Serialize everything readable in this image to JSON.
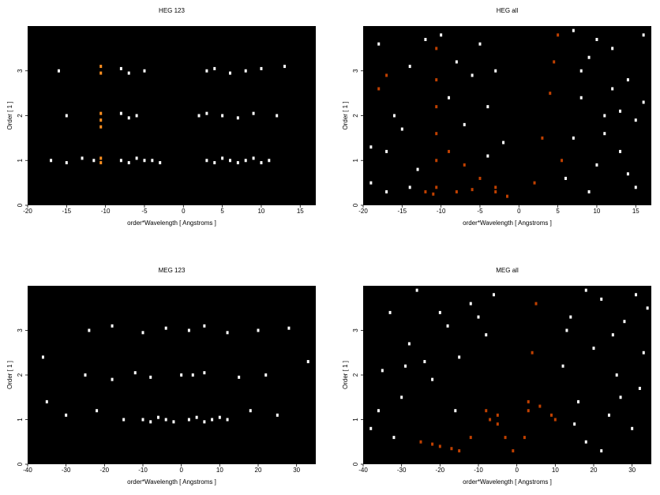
{
  "chart_data": [
    {
      "type": "scatter",
      "title": "HEG 123",
      "xlabel": "order*Wavelength [ Angstroms ]",
      "ylabel": "Order [ 1 ]",
      "xlim": [
        -20,
        17
      ],
      "ylim": [
        0,
        4
      ],
      "xticks": [
        -20,
        -15,
        -10,
        -5,
        0,
        5,
        10,
        15
      ],
      "yticks": [
        0,
        1,
        2,
        3
      ],
      "background": "#000000",
      "series": [
        {
          "color": "#ffffff",
          "x": [
            -17,
            -15,
            -13,
            -11.5,
            -8,
            -7,
            -6,
            -5,
            -4,
            -3,
            3,
            4,
            5,
            6,
            7,
            8,
            9,
            10,
            11,
            -15,
            -8,
            -7,
            -6,
            2,
            3,
            5,
            7,
            9,
            12,
            -16,
            -8,
            -7,
            -5,
            3,
            4,
            6,
            8,
            10,
            13
          ],
          "y": [
            1.0,
            0.95,
            1.05,
            1.0,
            1.0,
            0.95,
            1.05,
            1.0,
            1.0,
            0.95,
            1.0,
            0.95,
            1.05,
            1.0,
            0.95,
            1.0,
            1.05,
            0.95,
            1.0,
            2.0,
            2.05,
            1.95,
            2.0,
            2.0,
            2.05,
            2.0,
            1.95,
            2.05,
            2.0,
            3.0,
            3.05,
            2.95,
            3.0,
            3.0,
            3.05,
            2.95,
            3.0,
            3.05,
            3.1
          ]
        },
        {
          "color": "#ff9020",
          "x": [
            -10.6,
            -10.6,
            -10.6,
            -10.6,
            -10.6,
            -10.6,
            -10.6
          ],
          "y": [
            0.95,
            1.05,
            1.75,
            1.9,
            2.05,
            2.95,
            3.1
          ]
        }
      ]
    },
    {
      "type": "scatter",
      "title": "HEG all",
      "xlabel": "order*Wavelength [ Angstroms ]",
      "ylabel": "Order [ 1 ]",
      "xlim": [
        -20,
        17
      ],
      "ylim": [
        0,
        4
      ],
      "xticks": [
        -20,
        -15,
        -10,
        -5,
        0,
        5,
        10,
        15
      ],
      "yticks": [
        0,
        1,
        2,
        3
      ],
      "background": "#000000",
      "series": [
        {
          "color": "#ffffff",
          "x": [
            -19,
            -17,
            -16,
            -14,
            -13,
            -12,
            -9,
            -8,
            -7,
            -6,
            -5,
            -4,
            -3,
            -2,
            6,
            7,
            8,
            9,
            10,
            11,
            12,
            13,
            14,
            15,
            16,
            -18,
            -15,
            -10,
            -4,
            7,
            9,
            12,
            15,
            -19,
            -14,
            8,
            11,
            14,
            16,
            -17,
            10,
            13
          ],
          "y": [
            0.5,
            1.2,
            2.0,
            3.1,
            0.8,
            3.7,
            2.4,
            3.2,
            1.8,
            2.9,
            3.6,
            2.2,
            3.0,
            1.4,
            0.6,
            1.5,
            2.4,
            3.3,
            0.9,
            2.0,
            3.5,
            1.2,
            2.8,
            0.4,
            3.8,
            3.6,
            1.7,
            3.8,
            1.1,
            3.9,
            0.3,
            2.6,
            1.9,
            1.3,
            0.4,
            3.0,
            1.6,
            0.7,
            2.3,
            0.3,
            3.7,
            2.1
          ]
        },
        {
          "color": "#c04000",
          "x": [
            -10.6,
            -10.6,
            -10.6,
            -10.6,
            -10.6,
            -10.6,
            -12,
            -11,
            -9,
            -7,
            -5,
            -3,
            -1.5,
            2,
            3,
            4,
            4.5,
            5,
            5.5,
            -18,
            -17,
            -8,
            -6,
            -3
          ],
          "y": [
            0.4,
            1.0,
            1.6,
            2.2,
            2.8,
            3.5,
            0.3,
            0.25,
            1.2,
            0.9,
            0.6,
            0.4,
            0.2,
            0.5,
            1.5,
            2.5,
            3.2,
            3.8,
            1.0,
            2.6,
            2.9,
            0.3,
            0.35,
            0.3
          ]
        }
      ]
    },
    {
      "type": "scatter",
      "title": "MEG 123",
      "xlabel": "order*Wavelength [ Angstroms ]",
      "ylabel": "Order [ 1 ]",
      "xlim": [
        -40,
        35
      ],
      "ylim": [
        0,
        4
      ],
      "xticks": [
        -40,
        -30,
        -20,
        -10,
        0,
        10,
        20,
        30
      ],
      "yticks": [
        0,
        1,
        2,
        3
      ],
      "background": "#000000",
      "series": [
        {
          "color": "#ffffff",
          "x": [
            -30,
            -22,
            -15,
            -10,
            -8,
            -6,
            -4,
            -2,
            2,
            4,
            6,
            8,
            10,
            12,
            18,
            25,
            -25,
            -18,
            -12,
            -8,
            0,
            3,
            6,
            15,
            22,
            -24,
            -18,
            -10,
            -4,
            2,
            6,
            12,
            20,
            28,
            -36,
            -35,
            33
          ],
          "y": [
            1.1,
            1.2,
            1.0,
            1.0,
            0.95,
            1.05,
            1.0,
            0.95,
            1.0,
            1.05,
            0.95,
            1.0,
            1.05,
            1.0,
            1.2,
            1.1,
            2.0,
            1.9,
            2.05,
            1.95,
            2.0,
            2.0,
            2.05,
            1.95,
            2.0,
            3.0,
            3.1,
            2.95,
            3.05,
            3.0,
            3.1,
            2.95,
            3.0,
            3.05,
            2.4,
            1.4,
            2.3
          ]
        }
      ]
    },
    {
      "type": "scatter",
      "title": "MEG all",
      "xlabel": "order*Wavelength [ Angstroms ]",
      "ylabel": "Order [ 1 ]",
      "xlim": [
        -40,
        35
      ],
      "ylim": [
        0,
        4
      ],
      "xticks": [
        -40,
        -30,
        -20,
        -10,
        0,
        10,
        20,
        30
      ],
      "yticks": [
        0,
        1,
        2,
        3
      ],
      "background": "#000000",
      "series": [
        {
          "color": "#ffffff",
          "x": [
            -38,
            -35,
            -33,
            -30,
            -28,
            -26,
            -22,
            -18,
            -15,
            -12,
            -8,
            -6,
            12,
            14,
            16,
            18,
            20,
            22,
            24,
            26,
            28,
            30,
            32,
            34,
            -36,
            -24,
            -16,
            15,
            25,
            33,
            -32,
            -20,
            18,
            27,
            -29,
            22,
            31,
            -10,
            13
          ],
          "y": [
            0.8,
            2.1,
            3.4,
            1.5,
            2.7,
            3.9,
            1.9,
            3.1,
            2.4,
            3.6,
            2.9,
            3.8,
            2.2,
            3.3,
            1.4,
            0.5,
            2.6,
            3.7,
            1.1,
            2.0,
            3.2,
            0.8,
            1.7,
            3.5,
            1.2,
            2.3,
            1.2,
            0.9,
            2.9,
            2.5,
            0.6,
            3.4,
            3.9,
            1.5,
            2.2,
            0.3,
            3.8,
            3.3,
            3.0
          ]
        },
        {
          "color": "#c04000",
          "x": [
            -25,
            -22,
            -20,
            -17,
            -15,
            -12,
            -8,
            -5,
            -3,
            -1,
            2,
            3,
            4,
            5,
            -7,
            -5,
            3,
            6,
            9,
            10
          ],
          "y": [
            0.5,
            0.45,
            0.4,
            0.35,
            0.3,
            0.6,
            1.2,
            0.9,
            0.6,
            0.3,
            0.6,
            1.4,
            2.5,
            3.6,
            1.0,
            1.1,
            1.2,
            1.3,
            1.1,
            1.0
          ]
        }
      ]
    }
  ]
}
